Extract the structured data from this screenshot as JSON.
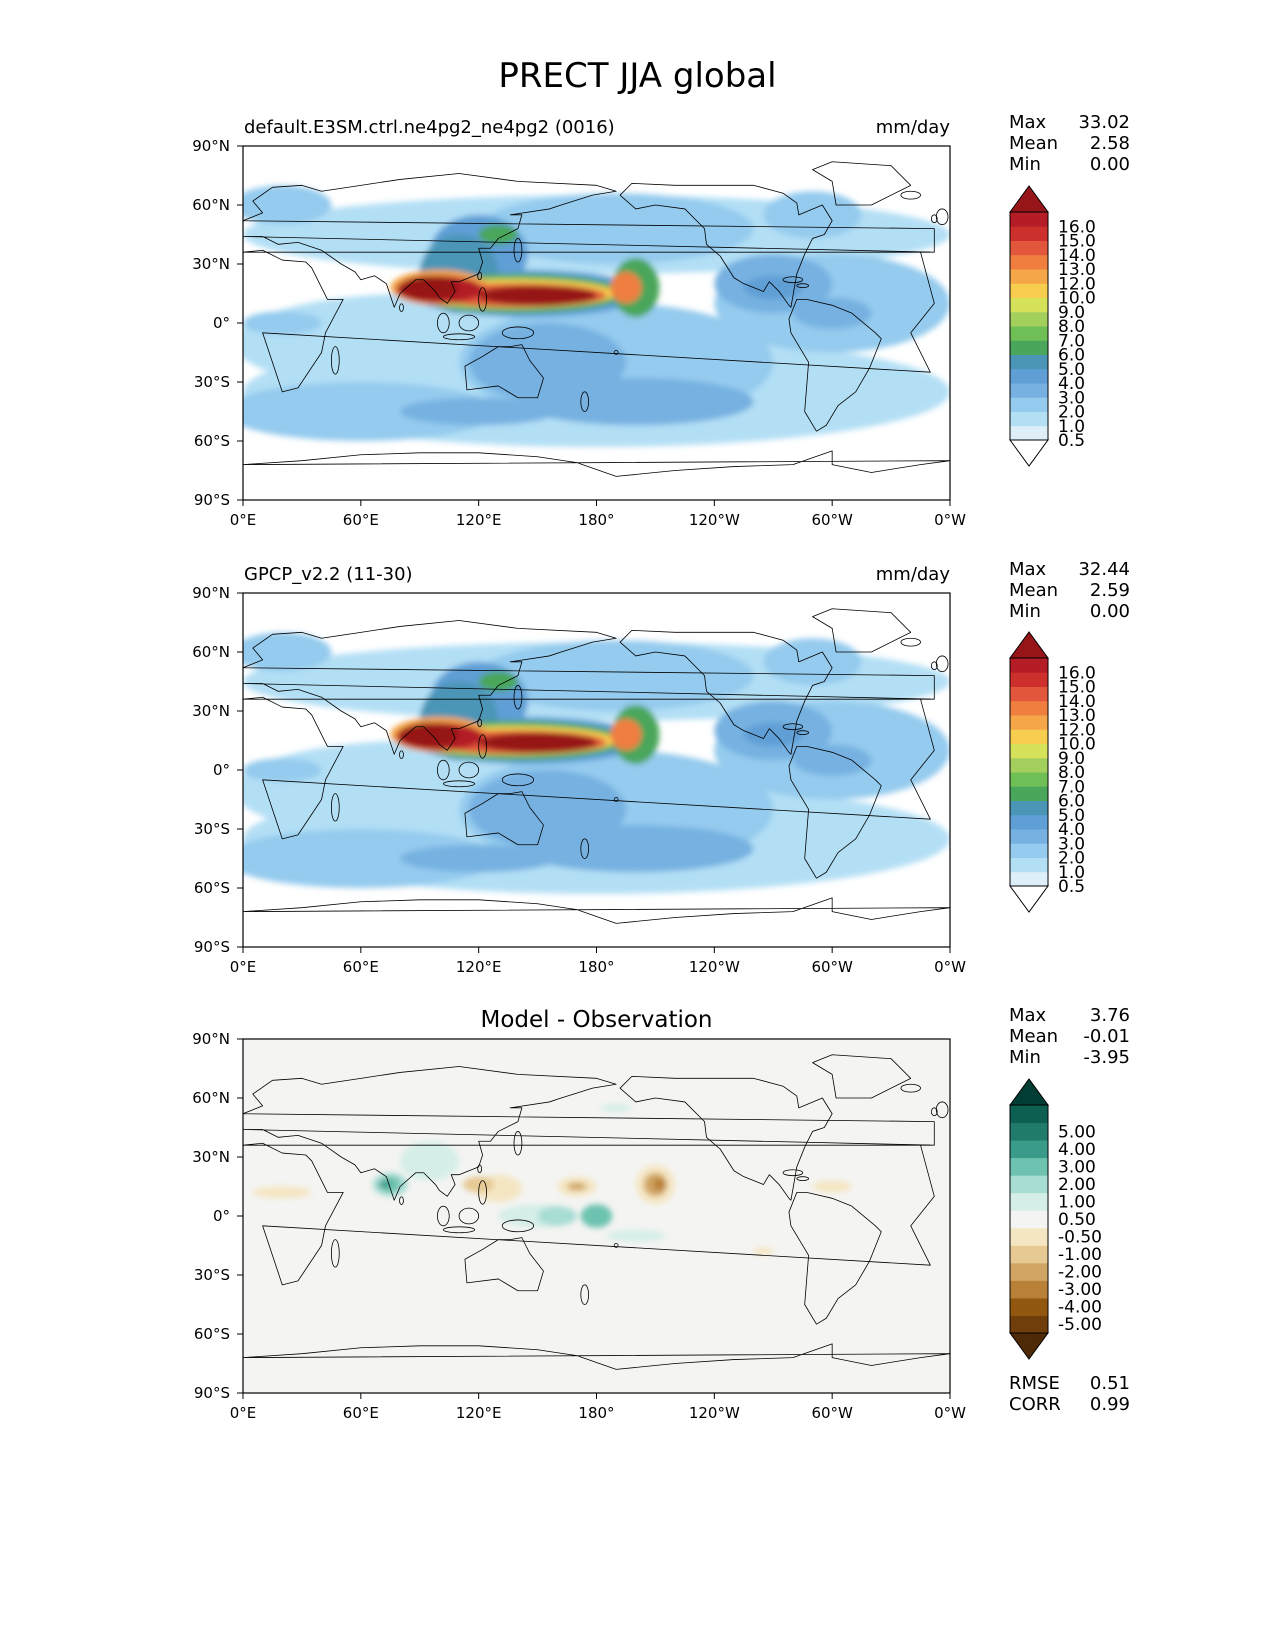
{
  "suptitle": "PRECT JJA global",
  "colors": {
    "precip_levels": [
      "#ffffff",
      "#deeff9",
      "#b3dff5",
      "#94cbee",
      "#76b1e1",
      "#5f9fd6",
      "#4b95b7",
      "#4aa65a",
      "#6fbf56",
      "#a3cf5c",
      "#d6e35a",
      "#f6cd4f",
      "#f5a648",
      "#ef7e3f",
      "#e2563b",
      "#cd2f2d",
      "#b41d26",
      "#961519"
    ],
    "diff_levels": [
      "#4f2a06",
      "#6f3e0a",
      "#93580f",
      "#b98037",
      "#d0a564",
      "#e6c993",
      "#f5e6c3",
      "#f4f4f2",
      "#d5eee8",
      "#a8ddd3",
      "#6dc2b0",
      "#3a9b8b",
      "#207b6b",
      "#0d5f52",
      "#023d34"
    ]
  },
  "chart_data": [
    {
      "type": "heatmap",
      "title": "default.E3SM.ctrl.ne4pg2_ne4pg2 (0016)",
      "units": "mm/day",
      "xticks": [
        "0°E",
        "60°E",
        "120°E",
        "180°",
        "120°W",
        "60°W",
        "0°W"
      ],
      "yticks": [
        "90°N",
        "60°N",
        "30°N",
        "0°",
        "30°S",
        "60°S",
        "90°S"
      ],
      "xlim": [
        0,
        360
      ],
      "ylim": [
        -90,
        90
      ],
      "stats": [
        {
          "label": "Max",
          "value": "33.02"
        },
        {
          "label": "Mean",
          "value": "2.58"
        },
        {
          "label": "Min",
          "value": "0.00"
        }
      ],
      "colorbar_levels": [
        "16.0",
        "15.0",
        "14.0",
        "13.0",
        "12.0",
        "10.0",
        "9.0",
        "8.0",
        "7.0",
        "6.0",
        "5.0",
        "4.0",
        "3.0",
        "2.0",
        "1.0",
        "0.5"
      ],
      "colorbar_extend": "both"
    },
    {
      "type": "heatmap",
      "title": "GPCP_v2.2 (11-30)",
      "units": "mm/day",
      "xticks": [
        "0°E",
        "60°E",
        "120°E",
        "180°",
        "120°W",
        "60°W",
        "0°W"
      ],
      "yticks": [
        "90°N",
        "60°N",
        "30°N",
        "0°",
        "30°S",
        "60°S",
        "90°S"
      ],
      "xlim": [
        0,
        360
      ],
      "ylim": [
        -90,
        90
      ],
      "stats": [
        {
          "label": "Max",
          "value": "32.44"
        },
        {
          "label": "Mean",
          "value": "2.59"
        },
        {
          "label": "Min",
          "value": "0.00"
        }
      ],
      "colorbar_levels": [
        "16.0",
        "15.0",
        "14.0",
        "13.0",
        "12.0",
        "10.0",
        "9.0",
        "8.0",
        "7.0",
        "6.0",
        "5.0",
        "4.0",
        "3.0",
        "2.0",
        "1.0",
        "0.5"
      ],
      "colorbar_extend": "both"
    },
    {
      "type": "heatmap",
      "title": "Model - Observation",
      "units": "",
      "xticks": [
        "0°E",
        "60°E",
        "120°E",
        "180°",
        "120°W",
        "60°W",
        "0°W"
      ],
      "yticks": [
        "90°N",
        "60°N",
        "30°N",
        "0°",
        "30°S",
        "60°S",
        "90°S"
      ],
      "xlim": [
        0,
        360
      ],
      "ylim": [
        -90,
        90
      ],
      "stats": [
        {
          "label": "Max",
          "value": "3.76"
        },
        {
          "label": "Mean",
          "value": "-0.01"
        },
        {
          "label": "Min",
          "value": "-3.95"
        }
      ],
      "colorbar_levels": [
        "5.00",
        "4.00",
        "3.00",
        "2.00",
        "1.00",
        "0.50",
        "-0.50",
        "-1.00",
        "-2.00",
        "-3.00",
        "-4.00",
        "-5.00"
      ],
      "colorbar_extend": "both",
      "metrics": [
        {
          "label": "RMSE",
          "value": "0.51"
        },
        {
          "label": "CORR",
          "value": "0.99"
        }
      ]
    }
  ]
}
